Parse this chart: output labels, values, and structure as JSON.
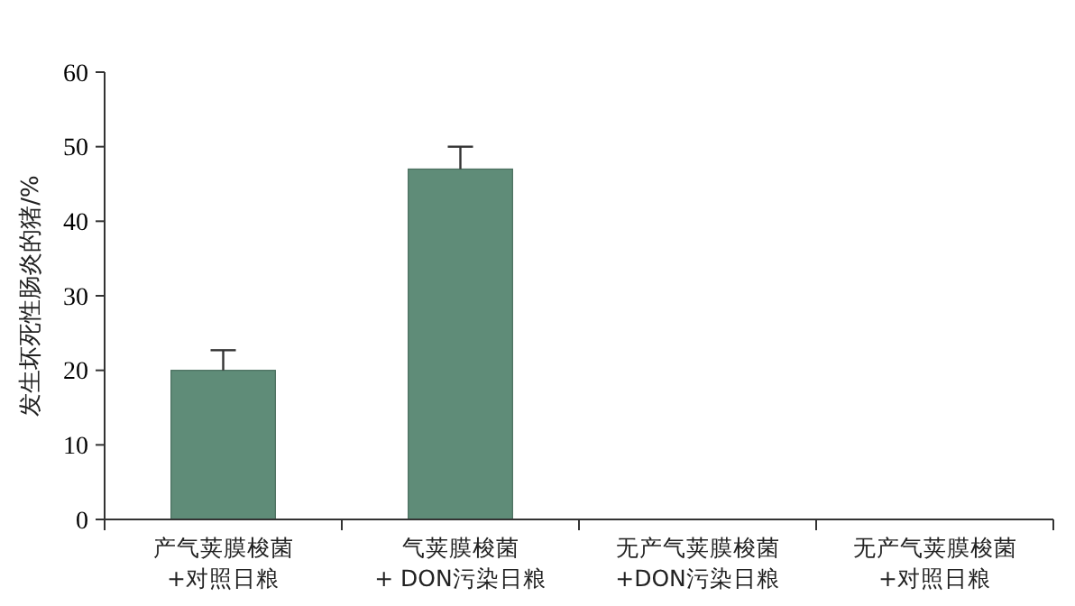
{
  "chart_data": {
    "type": "bar",
    "ylabel": "发生坏死性肠炎的猪/%",
    "categories": [
      "产气荚膜梭菌\n+对照日粮",
      "气荚膜梭菌\n+ DON污染日粮",
      "无产气荚膜梭菌\n+DON污染日粮",
      "无产气荚膜梭菌\n+对照日粮"
    ],
    "values": [
      20,
      47,
      0,
      0
    ],
    "color": "#5f8c78",
    "errors": [
      [
        20,
        22.7
      ],
      [
        47,
        50
      ],
      null,
      null
    ],
    "ylim": [
      0,
      60
    ],
    "yticks": [
      0,
      10,
      20,
      30,
      40,
      50,
      60
    ],
    "grid": false
  }
}
